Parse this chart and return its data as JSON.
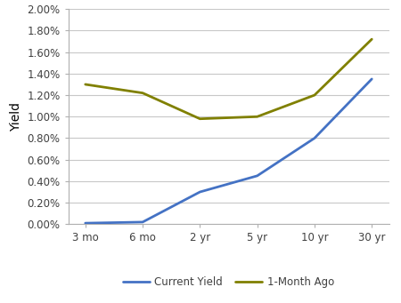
{
  "categories": [
    "3 mo",
    "6 mo",
    "2 yr",
    "5 yr",
    "10 yr",
    "30 yr"
  ],
  "current_yield": [
    0.0001,
    0.0002,
    0.003,
    0.0045,
    0.008,
    0.0135
  ],
  "one_month_ago": [
    0.013,
    0.0122,
    0.0098,
    0.01,
    0.012,
    0.0172
  ],
  "current_color": "#4472C4",
  "one_month_color": "#808000",
  "current_label": "Current Yield",
  "one_month_label": "1-Month Ago",
  "ylabel": "Yield",
  "ylim": [
    0.0,
    0.02
  ],
  "yticks": [
    0.0,
    0.002,
    0.004,
    0.006,
    0.008,
    0.01,
    0.012,
    0.014,
    0.016,
    0.018,
    0.02
  ],
  "background_color": "#ffffff",
  "grid_color": "#c8c8c8",
  "line_width": 2.0,
  "tick_label_color": "#404040",
  "spine_color": "#b0b0b0"
}
